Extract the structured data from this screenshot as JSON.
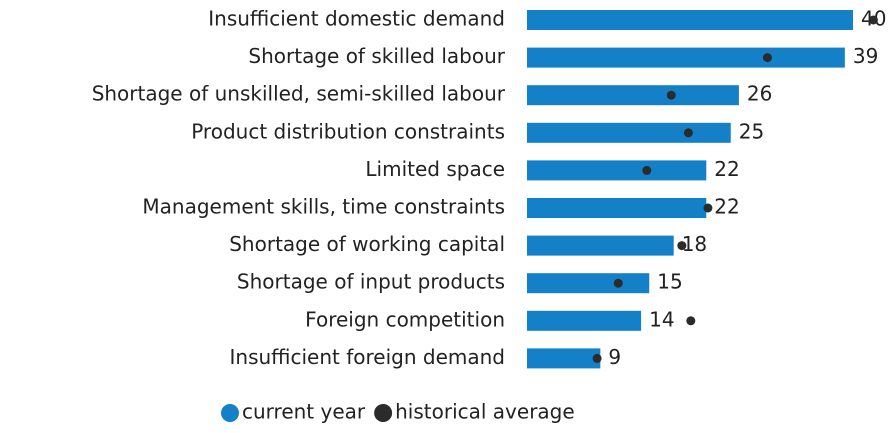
{
  "chart_data": {
    "type": "bar",
    "orientation": "horizontal",
    "categories": [
      "Insufficient domestic demand",
      "Shortage of skilled labour",
      "Shortage of unskilled, semi-skilled labour",
      "Product distribution constraints",
      "Limited space",
      "Management skills, time constraints",
      "Shortage of working capital",
      "Shortage of input products",
      "Foreign competition",
      "Insufficient foreign demand"
    ],
    "series": [
      {
        "name": "current year",
        "color": "#1380c8",
        "values": [
          40,
          39,
          26,
          25,
          22,
          22,
          18,
          15,
          14,
          9
        ]
      },
      {
        "name": "historical average",
        "color": "#2b2b2b",
        "values": [
          42.5,
          29.5,
          17.7,
          19.8,
          14.7,
          22.2,
          19,
          11.2,
          20.1,
          8.6
        ]
      }
    ],
    "legend": "bottom"
  }
}
